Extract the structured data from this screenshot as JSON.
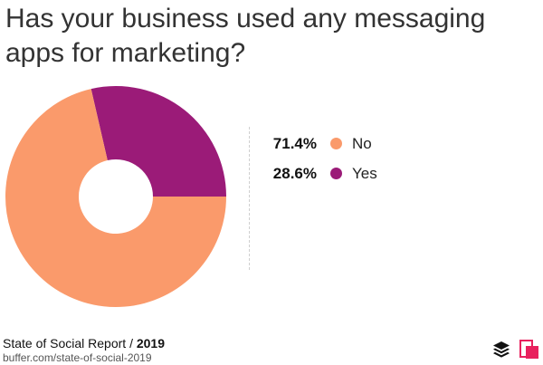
{
  "header": {
    "title": "Has your business used any messaging apps for marketing?"
  },
  "chart_data": {
    "type": "pie",
    "title": "Has your business used any messaging apps for marketing?",
    "donut": true,
    "slices": [
      {
        "label": "No",
        "value": 71.4,
        "display": "71.4%",
        "color": "#FA9A6B"
      },
      {
        "label": "Yes",
        "value": 28.6,
        "display": "28.6%",
        "color": "#9B1B78"
      }
    ],
    "legend_placement": "right"
  },
  "footer": {
    "source_prefix": "State of Social Report /",
    "source_year": "2019",
    "url": "buffer.com/state-of-social-2019"
  },
  "icons": {
    "buffer_logo": "buffer-stack-logo",
    "brand_logo": "pink-brand-logo"
  }
}
